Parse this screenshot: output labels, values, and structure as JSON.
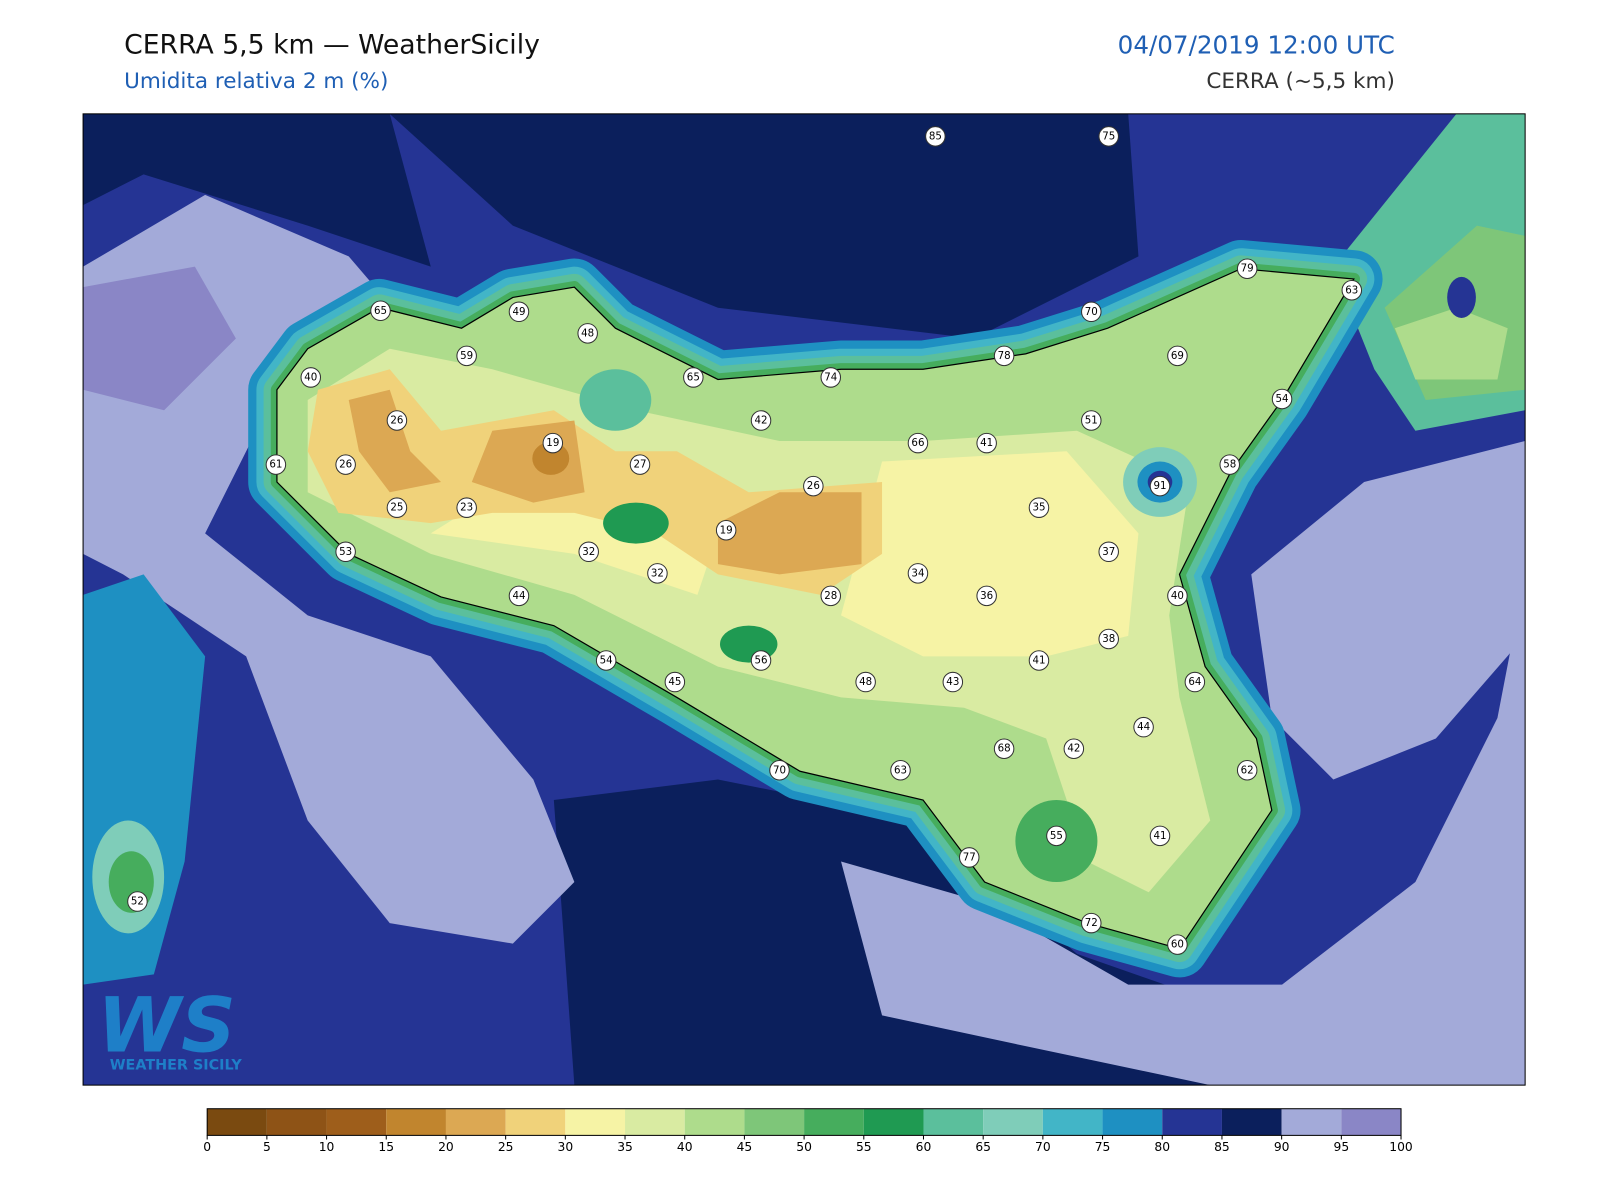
{
  "header": {
    "title": "CERRA 5,5 km — WeatherSicily",
    "subtitle": "Umidita relativa 2 m (%)",
    "datetime": "04/07/2019 12:00 UTC",
    "model": "CERRA (~5,5 km)"
  },
  "stations": [
    85,
    75,
    65,
    49,
    48,
    59,
    40,
    65,
    74,
    78,
    70,
    79,
    63,
    69,
    26,
    19,
    42,
    66,
    41,
    51,
    54,
    61,
    26,
    27,
    26,
    91,
    58,
    25,
    23,
    35,
    19,
    32,
    53,
    37,
    32,
    34,
    44,
    28,
    36,
    40,
    38,
    54,
    56,
    41,
    45,
    48,
    43,
    64,
    44,
    68,
    42,
    62,
    70,
    63,
    55,
    41,
    77,
    52,
    72,
    60
  ],
  "colorbar": {
    "ticks": [
      0,
      5,
      10,
      15,
      20,
      25,
      30,
      35,
      40,
      45,
      50,
      55,
      60,
      65,
      70,
      75,
      80,
      85,
      90,
      95,
      100
    ],
    "colors": [
      "#7a4a10",
      "#8e5316",
      "#9e5e1b",
      "#c1852e",
      "#dca853",
      "#f0d27a",
      "#f6f3a5",
      "#d9eba2",
      "#aedc8c",
      "#7ec679",
      "#46ad5d",
      "#1f9a52",
      "#5bbf9c",
      "#7fcdb9",
      "#42b5c7",
      "#1e90c2",
      "#253494",
      "#0b1f5c",
      "#a3aad9",
      "#8a86c6"
    ]
  },
  "logo": {
    "mark": "WS",
    "text": "WEATHER SICILY"
  }
}
